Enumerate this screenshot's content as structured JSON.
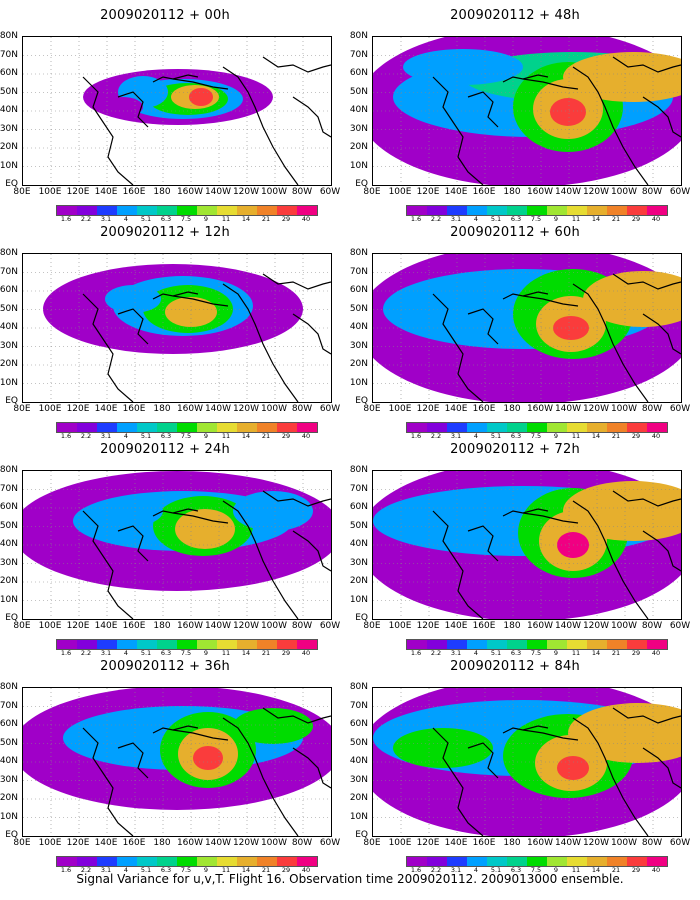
{
  "footer": "Signal Variance for u,v,T. Flight 16. Observation time 2009020112. 2009013000 ensemble.",
  "chart_data": {
    "type": "heatmap",
    "x_ticks": [
      "80E",
      "100E",
      "120E",
      "140E",
      "160E",
      "180",
      "160W",
      "140W",
      "120W",
      "100W",
      "80W",
      "60W"
    ],
    "y_ticks": [
      "80N",
      "70N",
      "60N",
      "50N",
      "40N",
      "30N",
      "20N",
      "10N",
      "EQ"
    ],
    "colorbar": {
      "levels": [
        "1.6",
        "2.2",
        "3.1",
        "4",
        "5.1",
        "6.3",
        "7.5",
        "9",
        "11",
        "14",
        "21",
        "29",
        "40"
      ],
      "colors": [
        "#a000c8",
        "#8200dc",
        "#1e3cff",
        "#00a0ff",
        "#00c8c8",
        "#00d28c",
        "#00dc00",
        "#a0e632",
        "#e6dc32",
        "#e6af2d",
        "#f08228",
        "#fa3c3c",
        "#f00082"
      ]
    },
    "panels": [
      {
        "title": "2009020112 + 00h",
        "center": "near 150W 50N, peak variance 21-40"
      },
      {
        "title": "2009020112 + 48h",
        "center": "near 140W 38N, peak variance 21-29"
      },
      {
        "title": "2009020112 + 12h",
        "center": "near 155W 45N, peak variance 14-21"
      },
      {
        "title": "2009020112 + 60h",
        "center": "near 138W 38N, peak variance 21-29"
      },
      {
        "title": "2009020112 + 24h",
        "center": "near 150W 42N, peak variance 14-21"
      },
      {
        "title": "2009020112 + 72h",
        "center": "near 135W 35N, peak variance 29-40"
      },
      {
        "title": "2009020112 + 36h",
        "center": "near 145W 40N, peak variance 21-29"
      },
      {
        "title": "2009020112 + 84h",
        "center": "near 140W 33N, peak variance 21-29"
      }
    ]
  }
}
